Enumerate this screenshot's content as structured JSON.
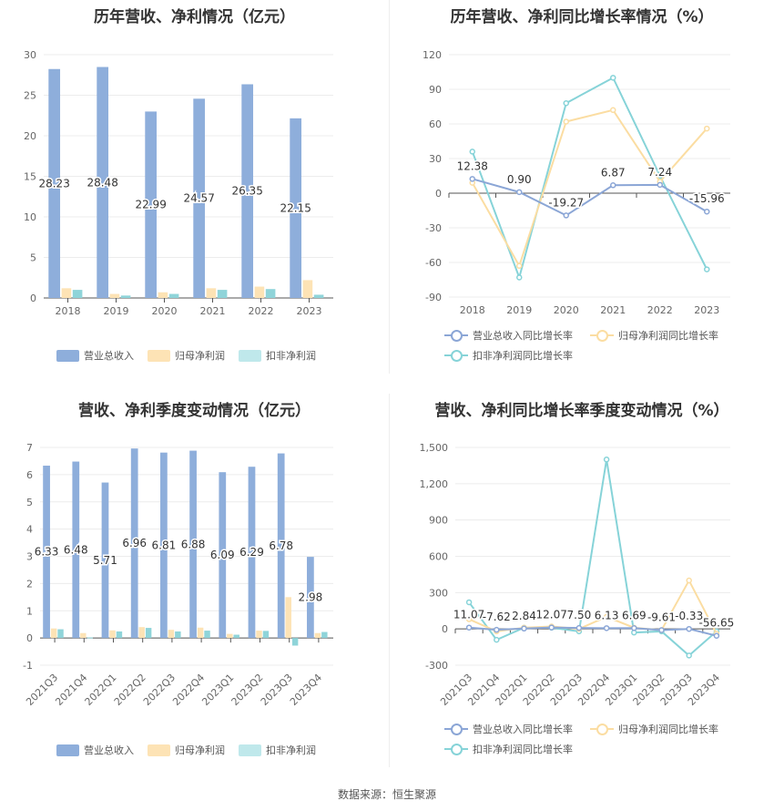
{
  "colors": {
    "revenue": "#8eaedb",
    "net_profit": "#fde3b5",
    "deducted_profit": "#8fd4d9",
    "revenue_line": "#8ba6d6",
    "net_line": "#fbdda2",
    "deducted_line": "#86d3d8"
  },
  "source": "数据来源：恒生聚源",
  "chart_data": [
    {
      "id": "annual-bar",
      "type": "bar",
      "title": "历年营收、净利情况（亿元）",
      "categories": [
        "2018",
        "2019",
        "2020",
        "2021",
        "2022",
        "2023"
      ],
      "ylim": [
        0,
        30
      ],
      "yticks": [
        0,
        5,
        10,
        15,
        20,
        25,
        30
      ],
      "series": [
        {
          "name": "营业总收入",
          "values": [
            28.23,
            28.48,
            22.99,
            24.57,
            26.35,
            22.15
          ],
          "labels": [
            "28.23",
            "28.48",
            "22.99",
            "24.57",
            "26.35",
            "22.15"
          ]
        },
        {
          "name": "归母净利润",
          "values": [
            1.2,
            0.5,
            0.7,
            1.2,
            1.4,
            2.2
          ]
        },
        {
          "name": "扣非净利润",
          "values": [
            1.0,
            0.3,
            0.5,
            1.0,
            1.1,
            0.4
          ]
        }
      ],
      "legend": "bottom"
    },
    {
      "id": "annual-line",
      "type": "line",
      "title": "历年营收、净利同比增长率情况（%）",
      "categories": [
        "2018",
        "2019",
        "2020",
        "2021",
        "2022",
        "2023"
      ],
      "ylim": [
        -90,
        120
      ],
      "yticks": [
        -90,
        -60,
        -30,
        0,
        30,
        60,
        90,
        120
      ],
      "series": [
        {
          "name": "营业总收入同比增长率",
          "values": [
            12.38,
            0.9,
            -19.27,
            6.87,
            7.24,
            -15.96
          ],
          "labels": [
            "12.38",
            "0.90",
            "-19.27",
            "6.87",
            "7.24",
            "-15.96"
          ]
        },
        {
          "name": "归母净利润同比增长率",
          "values": [
            9,
            -63,
            62,
            72,
            10,
            56
          ]
        },
        {
          "name": "扣非净利润同比增长率",
          "values": [
            36,
            -73,
            78,
            100,
            15,
            -66
          ]
        }
      ],
      "legend": "bottom"
    },
    {
      "id": "quarter-bar",
      "type": "bar",
      "title": "营收、净利季度变动情况（亿元）",
      "categories": [
        "2021Q3",
        "2021Q4",
        "2022Q1",
        "2022Q2",
        "2022Q3",
        "2022Q4",
        "2023Q1",
        "2023Q2",
        "2023Q3",
        "2023Q4"
      ],
      "ylim": [
        -1,
        7
      ],
      "yticks": [
        -1,
        0,
        1,
        2,
        3,
        4,
        5,
        6,
        7
      ],
      "series": [
        {
          "name": "营业总收入",
          "values": [
            6.33,
            6.48,
            5.71,
            6.96,
            6.81,
            6.88,
            6.09,
            6.29,
            6.78,
            2.98
          ],
          "labels": [
            "6.33",
            "6.48",
            "5.71",
            "6.96",
            "6.81",
            "6.88",
            "6.09",
            "6.29",
            "6.78",
            "2.98"
          ]
        },
        {
          "name": "归母净利润",
          "values": [
            0.35,
            0.18,
            0.28,
            0.4,
            0.3,
            0.38,
            0.15,
            0.27,
            1.5,
            0.18
          ]
        },
        {
          "name": "扣非净利润",
          "values": [
            0.32,
            0.02,
            0.24,
            0.37,
            0.24,
            0.27,
            0.12,
            0.26,
            -0.28,
            0.22
          ]
        }
      ],
      "legend": "bottom"
    },
    {
      "id": "quarter-line",
      "type": "line",
      "title": "营收、净利同比增长率季度变动情况（%）",
      "categories": [
        "2021Q3",
        "2021Q4",
        "2022Q1",
        "2022Q2",
        "2022Q3",
        "2022Q4",
        "2023Q1",
        "2023Q2",
        "2023Q3",
        "2023Q4"
      ],
      "ylim": [
        -300,
        1500
      ],
      "yticks": [
        -300,
        0,
        300,
        600,
        900,
        1200,
        1500
      ],
      "ytick_labels": [
        "-300",
        "0",
        "300",
        "600",
        "900",
        "1,200",
        "1,500"
      ],
      "series": [
        {
          "name": "营业总收入同比增长率",
          "values": [
            11.07,
            -7.62,
            2.84,
            12.07,
            7.5,
            6.13,
            6.69,
            -9.61,
            -0.33,
            -56.65
          ],
          "labels": [
            "11.07",
            "-7.62",
            "2.84",
            "12.07",
            "7.50",
            "6.13",
            "6.69",
            "-9.61",
            "-0.33",
            "-56.65"
          ]
        },
        {
          "name": "归母净利润同比增长率",
          "values": [
            80,
            -20,
            10,
            20,
            0,
            100,
            10,
            -10,
            400,
            -40
          ]
        },
        {
          "name": "扣非净利润同比增长率",
          "values": [
            220,
            -90,
            10,
            10,
            -20,
            1400,
            -30,
            -20,
            -220,
            -20
          ]
        }
      ],
      "legend": "bottom"
    }
  ]
}
